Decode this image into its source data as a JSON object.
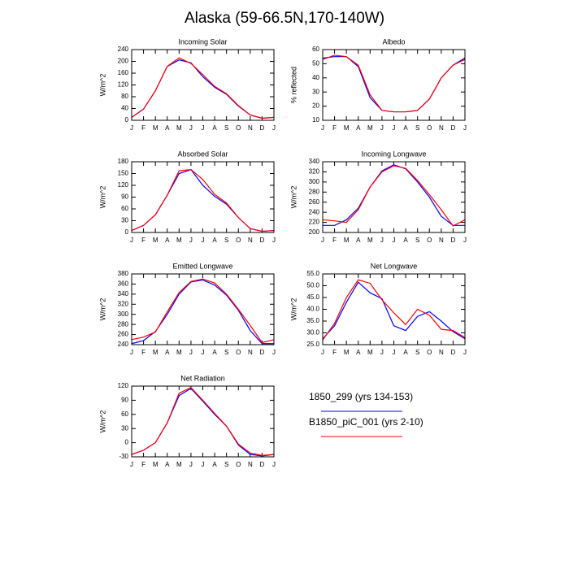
{
  "title": "Alaska (59-66.5N,170-140W)",
  "legend": [
    {
      "name": "1850_299 (yrs 134-153)",
      "color": "#0000ff"
    },
    {
      "name": "B1850_piC_001 (yrs 2-10)",
      "color": "#ff0000"
    }
  ],
  "chart_data": [
    {
      "type": "line",
      "title": "Incoming Solar",
      "ylabel": "W/m^2",
      "categories": [
        "J",
        "F",
        "M",
        "A",
        "M",
        "J",
        "J",
        "A",
        "S",
        "O",
        "N",
        "D",
        "J"
      ],
      "ylim": [
        0,
        240
      ],
      "yticks": [
        0,
        40,
        80,
        120,
        160,
        200,
        240
      ],
      "series": [
        {
          "color": "#0000ff",
          "values": [
            10,
            38,
            100,
            183,
            205,
            195,
            148,
            112,
            88,
            48,
            18,
            7,
            10
          ]
        },
        {
          "color": "#ff0000",
          "values": [
            10,
            38,
            100,
            183,
            212,
            193,
            155,
            115,
            90,
            50,
            18,
            7,
            10
          ]
        }
      ]
    },
    {
      "type": "line",
      "title": "Albedo",
      "ylabel": "% reflected",
      "categories": [
        "J",
        "F",
        "M",
        "A",
        "M",
        "J",
        "J",
        "A",
        "S",
        "O",
        "N",
        "D",
        "J"
      ],
      "ylim": [
        10,
        60
      ],
      "yticks": [
        10,
        20,
        30,
        40,
        50,
        60
      ],
      "series": [
        {
          "color": "#0000ff",
          "values": [
            54,
            55,
            55,
            48,
            26,
            17,
            16,
            16,
            17,
            25,
            40,
            49,
            54
          ]
        },
        {
          "color": "#ff0000",
          "values": [
            53,
            56,
            55,
            49,
            28,
            17,
            16,
            16,
            17,
            25,
            40,
            49,
            53
          ]
        }
      ]
    },
    {
      "type": "line",
      "title": "Absorbed Solar",
      "ylabel": "W/m^2",
      "categories": [
        "J",
        "F",
        "M",
        "A",
        "M",
        "J",
        "J",
        "A",
        "S",
        "O",
        "N",
        "D",
        "J"
      ],
      "ylim": [
        0,
        180
      ],
      "yticks": [
        0,
        30,
        60,
        90,
        120,
        150,
        180
      ],
      "series": [
        {
          "color": "#0000ff",
          "values": [
            5,
            18,
            45,
            95,
            150,
            160,
            120,
            92,
            72,
            38,
            10,
            3,
            5
          ]
        },
        {
          "color": "#ff0000",
          "values": [
            5,
            18,
            45,
            95,
            157,
            160,
            135,
            97,
            75,
            38,
            10,
            3,
            5
          ]
        }
      ]
    },
    {
      "type": "line",
      "title": "Incoming Longwave",
      "ylabel": "W/m^2",
      "categories": [
        "J",
        "F",
        "M",
        "A",
        "M",
        "J",
        "J",
        "A",
        "S",
        "O",
        "N",
        "D",
        "J"
      ],
      "ylim": [
        200,
        340
      ],
      "yticks": [
        200,
        220,
        240,
        260,
        280,
        300,
        320,
        340
      ],
      "series": [
        {
          "color": "#0000ff",
          "values": [
            214,
            214,
            225,
            248,
            290,
            322,
            334,
            326,
            300,
            270,
            232,
            214,
            214
          ]
        },
        {
          "color": "#ff0000",
          "values": [
            225,
            223,
            220,
            245,
            290,
            320,
            332,
            327,
            303,
            275,
            245,
            213,
            225
          ]
        }
      ]
    },
    {
      "type": "line",
      "title": "Emitted Longwave",
      "ylabel": "W/m^2",
      "categories": [
        "J",
        "F",
        "M",
        "A",
        "M",
        "J",
        "J",
        "A",
        "S",
        "O",
        "N",
        "D",
        "J"
      ],
      "ylim": [
        240,
        380
      ],
      "yticks": [
        240,
        260,
        280,
        300,
        320,
        340,
        360,
        380
      ],
      "series": [
        {
          "color": "#0000ff",
          "values": [
            242,
            248,
            266,
            300,
            340,
            364,
            368,
            358,
            338,
            308,
            268,
            242,
            242
          ]
        },
        {
          "color": "#ff0000",
          "values": [
            250,
            255,
            265,
            305,
            343,
            365,
            370,
            362,
            340,
            310,
            278,
            244,
            250
          ]
        }
      ]
    },
    {
      "type": "line",
      "title": "Net Longwave",
      "ylabel": "W/m^2",
      "categories": [
        "J",
        "F",
        "M",
        "A",
        "M",
        "J",
        "J",
        "A",
        "S",
        "O",
        "N",
        "D",
        "J"
      ],
      "ylim": [
        25,
        55
      ],
      "yticks": [
        {
          "value": 25,
          "label": "25.0"
        },
        {
          "value": 30,
          "label": "30.0"
        },
        {
          "value": 35,
          "label": "35.0"
        },
        {
          "value": 40,
          "label": "40.0"
        },
        {
          "value": 45,
          "label": "45.0"
        },
        {
          "value": 50,
          "label": "50.0"
        },
        {
          "value": 55,
          "label": "55.0"
        }
      ],
      "series": [
        {
          "color": "#0000ff",
          "values": [
            27.5,
            33,
            43,
            51.5,
            47,
            44.5,
            33,
            31,
            37,
            39,
            35,
            30.5,
            27.5
          ]
        },
        {
          "color": "#ff0000",
          "values": [
            27,
            34,
            45,
            52.5,
            51,
            44,
            38.5,
            33.5,
            40,
            37.5,
            31.5,
            31,
            28
          ]
        }
      ]
    },
    {
      "type": "line",
      "title": "Net Radiation",
      "ylabel": "W/m^2",
      "categories": [
        "J",
        "F",
        "M",
        "A",
        "M",
        "J",
        "J",
        "A",
        "S",
        "O",
        "N",
        "D",
        "J"
      ],
      "ylim": [
        -30,
        120
      ],
      "yticks": [
        -30,
        0,
        30,
        60,
        90,
        120
      ],
      "series": [
        {
          "color": "#0000ff",
          "values": [
            -25,
            -16,
            0,
            42,
            100,
            115,
            88,
            60,
            35,
            -5,
            -25,
            -28,
            -25
          ]
        },
        {
          "color": "#ff0000",
          "values": [
            -25,
            -16,
            0,
            42,
            105,
            117,
            90,
            62,
            35,
            -3,
            -22,
            -27,
            -25
          ]
        }
      ]
    }
  ]
}
